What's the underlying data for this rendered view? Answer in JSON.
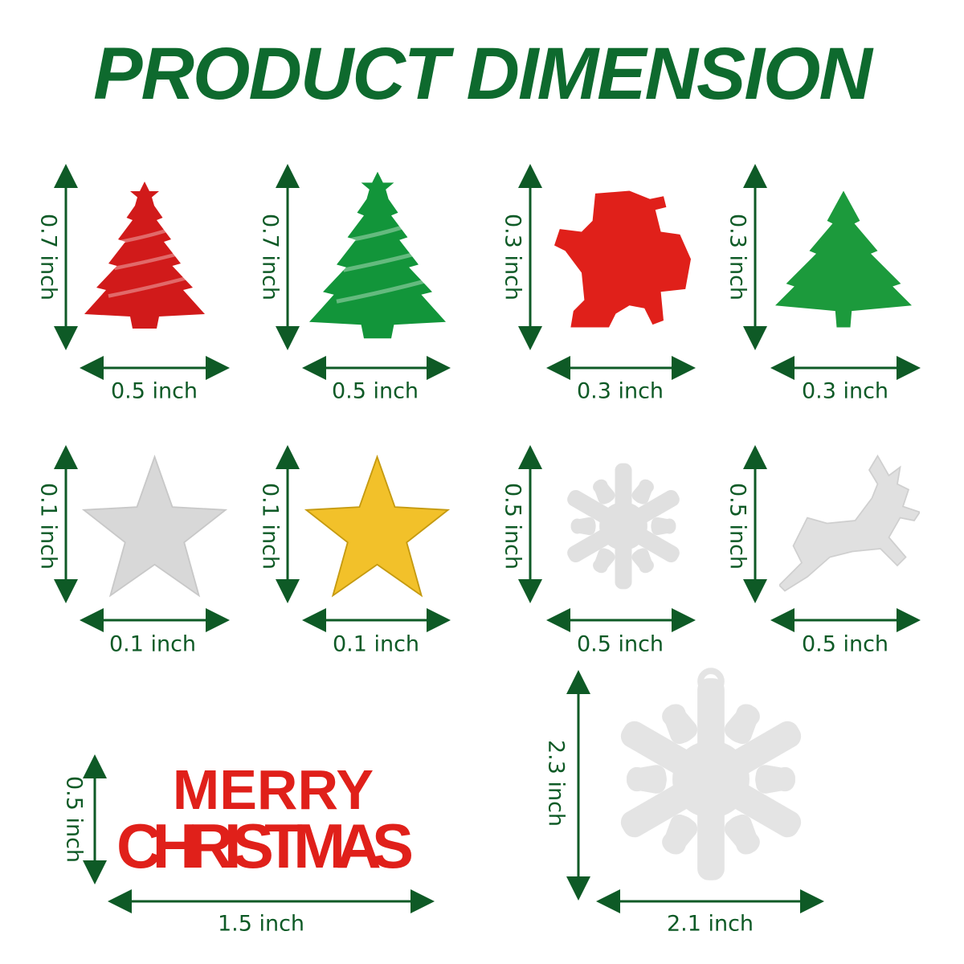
{
  "title": "PRODUCT DIMENSION",
  "accent_color": "#0e6a2e",
  "items": [
    {
      "name": "red-christmas-tree",
      "height": "0.7 inch",
      "width": "0.5 inch",
      "color": "#d11a1a"
    },
    {
      "name": "green-christmas-tree",
      "height": "0.7 inch",
      "width": "0.5 inch",
      "color": "#12953a"
    },
    {
      "name": "red-santa",
      "height": "0.3 inch",
      "width": "0.3 inch",
      "color": "#e0201a"
    },
    {
      "name": "green-pine-tree",
      "height": "0.3 inch",
      "width": "0.3 inch",
      "color": "#1c9a3c"
    },
    {
      "name": "silver-star",
      "height": "0.1 inch",
      "width": "0.1 inch",
      "color": "#d8d8d8"
    },
    {
      "name": "gold-star",
      "height": "0.1 inch",
      "width": "0.1 inch",
      "color": "#f2c12a"
    },
    {
      "name": "silver-snowflake",
      "height": "0.5 inch",
      "width": "0.5 inch",
      "color": "#e0e0e0"
    },
    {
      "name": "silver-reindeer",
      "height": "0.5 inch",
      "width": "0.5 inch",
      "color": "#e0e0e0"
    },
    {
      "name": "merry-christmas-text",
      "height": "0.5 inch",
      "width": "1.5 inch",
      "color": "#e0201a",
      "lettering": [
        "MERRY",
        "CHRISTMAS"
      ]
    },
    {
      "name": "large-snowflake",
      "height": "2.3 inch",
      "width": "2.1 inch",
      "color": "#e4e4e4"
    }
  ]
}
